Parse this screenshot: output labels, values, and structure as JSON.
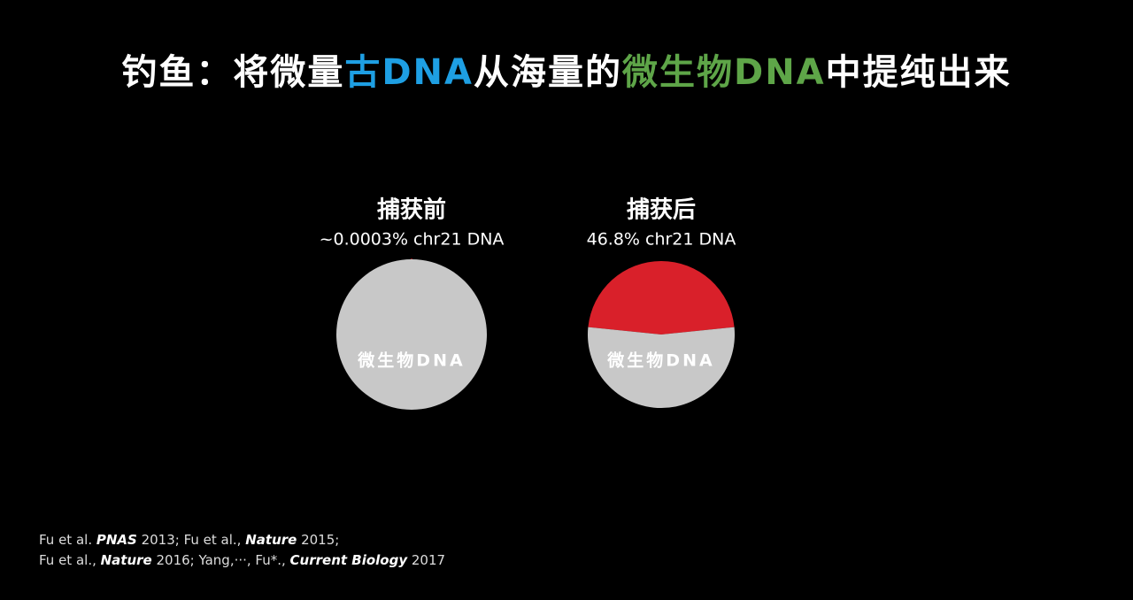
{
  "title": {
    "segments": [
      {
        "text": "钓鱼：将微量",
        "color": "#ffffff"
      },
      {
        "text": "古DNA",
        "color": "#1e9fe3"
      },
      {
        "text": "从海量的",
        "color": "#ffffff"
      },
      {
        "text": "微生物DNA",
        "color": "#5ea548"
      },
      {
        "text": "中提纯出来",
        "color": "#ffffff"
      }
    ]
  },
  "chart_data": [
    {
      "type": "pie",
      "title": "捕获前",
      "subtitle": "~0.0003%  chr21 DNA",
      "categories": [
        null,
        "微生物DNA"
      ],
      "values": [
        0.0003,
        99.9997
      ],
      "colors": [
        "#d9202a",
        "#c8c8c8"
      ]
    },
    {
      "type": "pie",
      "title": "捕获后",
      "subtitle": "46.8% chr21 DNA",
      "categories": [
        null,
        "微生物DNA"
      ],
      "values": [
        46.8,
        53.2
      ],
      "colors": [
        "#d9202a",
        "#c8c8c8"
      ]
    }
  ],
  "references": [
    [
      {
        "text": "Fu et al. "
      },
      {
        "text": "PNAS",
        "em": true
      },
      {
        "text": " 2013; Fu et al., "
      },
      {
        "text": "Nature",
        "em": true
      },
      {
        "text": " 2015;"
      }
    ],
    [
      {
        "text": "Fu et al., "
      },
      {
        "text": "Nature",
        "em": true
      },
      {
        "text": " 2016; Yang,···, Fu*., "
      },
      {
        "text": "Current Biology",
        "em": true
      },
      {
        "text": " 2017"
      }
    ]
  ]
}
